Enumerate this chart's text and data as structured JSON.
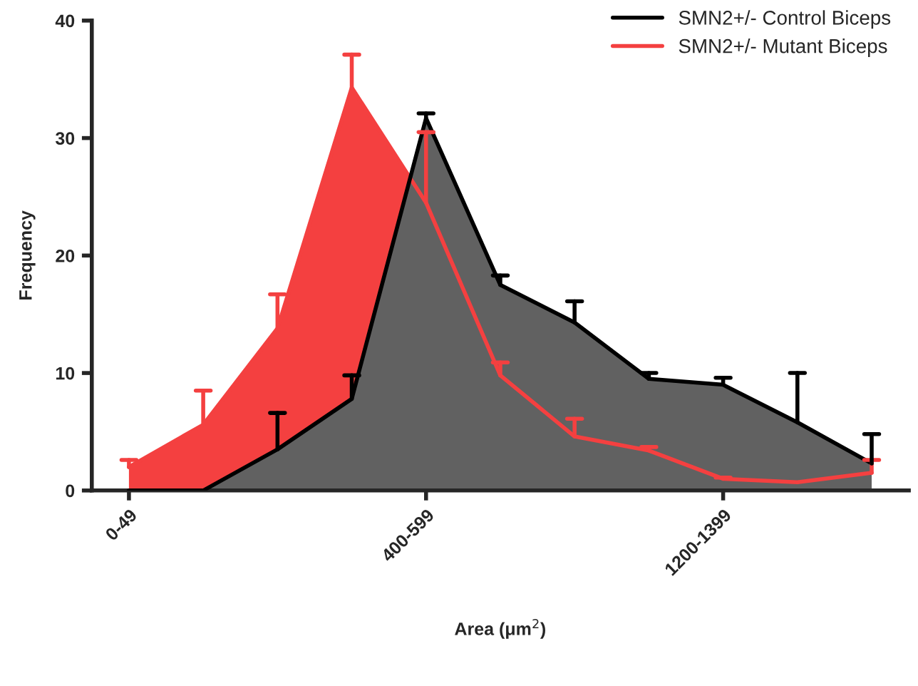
{
  "chart_data": {
    "type": "area",
    "xlabel": "Area (μm$^{2}$)",
    "ylabel": "Frequency",
    "categories": [
      "0-49",
      null,
      null,
      null,
      "400-599",
      null,
      null,
      null,
      "1200-1399",
      null,
      null
    ],
    "ylim": [
      0,
      40
    ],
    "yticks": [
      0,
      10,
      20,
      30,
      40
    ],
    "grid": false,
    "legend": "top right",
    "series": [
      {
        "name": "SMN2+/- Mutant Biceps",
        "color": "#f44040",
        "values": [
          2.0,
          5.6,
          13.8,
          34.3,
          24.5,
          9.8,
          4.6,
          3.4,
          1.0,
          0.7,
          1.5
        ],
        "errors": [
          [
            2.0,
            2.6
          ],
          [
            5.6,
            8.5
          ],
          [
            13.8,
            16.7
          ],
          [
            34.3,
            37.1
          ],
          [
            24.5,
            30.5
          ],
          [
            9.8,
            10.9
          ],
          [
            4.6,
            6.1
          ],
          [
            3.4,
            3.7
          ],
          [
            1.0,
            1.1
          ],
          null,
          [
            1.5,
            2.6
          ]
        ]
      },
      {
        "name": "SMN2+/- Control Biceps",
        "color": "#000000",
        "values": [
          0,
          0,
          3.5,
          7.8,
          31.7,
          17.5,
          14.3,
          9.5,
          9.0,
          5.8,
          2.3
        ],
        "errors": [
          null,
          null,
          [
            3.5,
            6.6
          ],
          [
            7.8,
            9.8
          ],
          [
            31.7,
            32.1
          ],
          [
            17.5,
            18.3
          ],
          [
            14.3,
            16.1
          ],
          [
            9.5,
            10.0
          ],
          [
            9.0,
            9.6
          ],
          [
            5.8,
            10.0
          ],
          [
            2.3,
            4.8
          ]
        ]
      }
    ]
  }
}
